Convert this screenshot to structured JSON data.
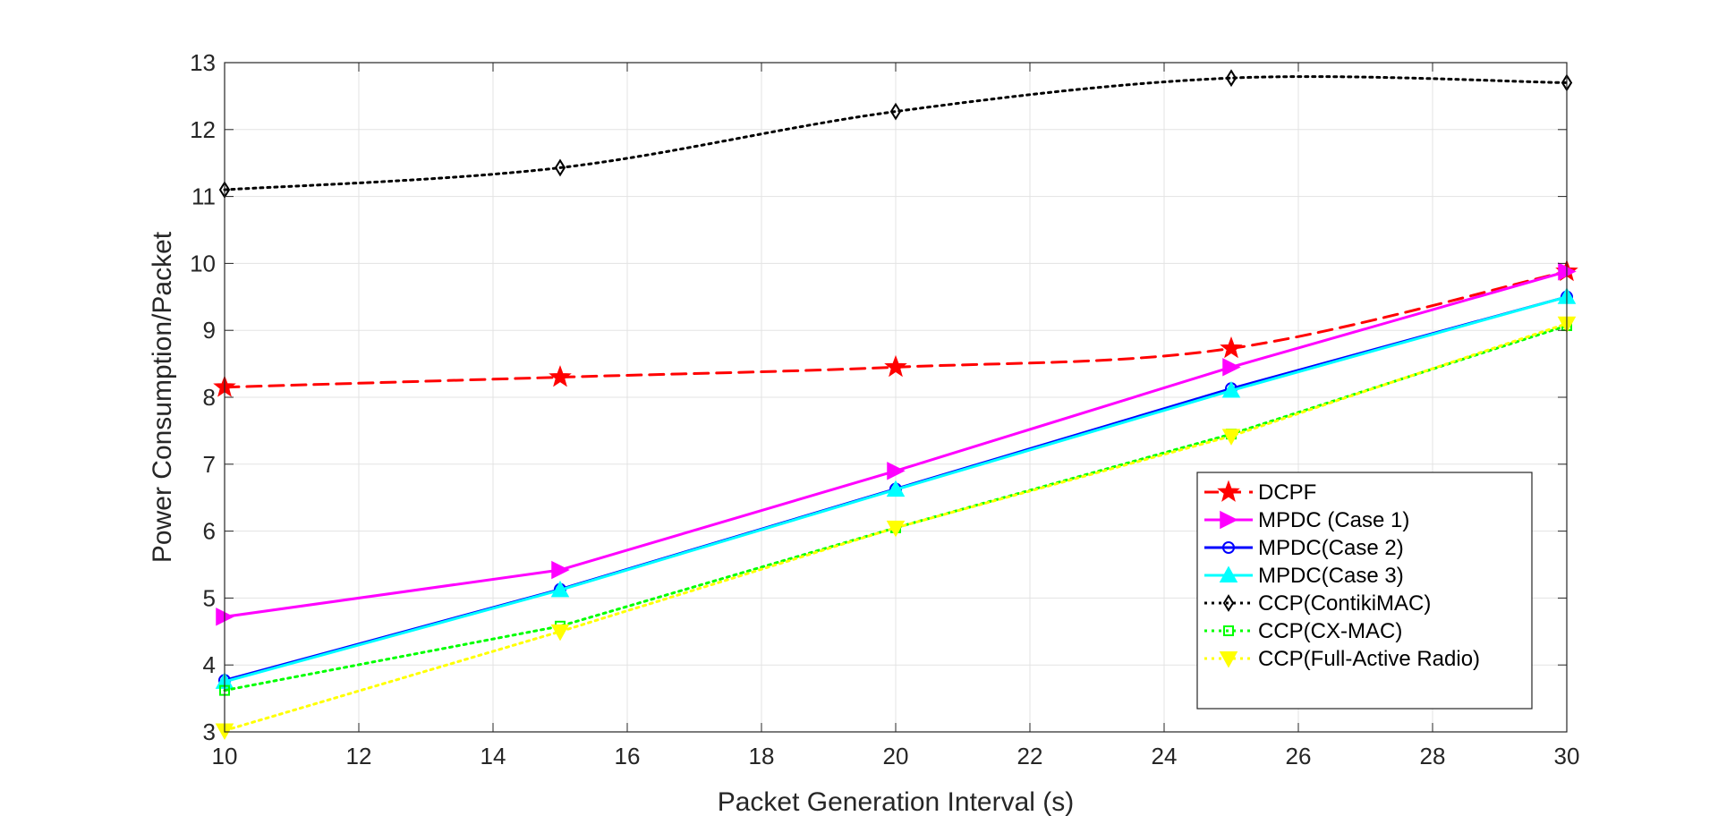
{
  "chart_data": {
    "type": "line",
    "xlabel": "Packet Generation Interval (s)",
    "ylabel": "Power Consumption/Packet",
    "xlim": [
      10,
      30
    ],
    "ylim": [
      3,
      13
    ],
    "xticks": [
      10,
      12,
      14,
      16,
      18,
      20,
      22,
      24,
      26,
      28,
      30
    ],
    "yticks": [
      3,
      4,
      5,
      6,
      7,
      8,
      9,
      10,
      11,
      12,
      13
    ],
    "grid": true,
    "legend_position": "bottom-right",
    "x": [
      10,
      15,
      20,
      25,
      30
    ],
    "series": [
      {
        "name": "DCPF",
        "values": [
          8.15,
          8.3,
          8.45,
          8.73,
          9.88
        ],
        "color": "#ff0000",
        "dash": "dashed",
        "marker": "star",
        "smooth": true
      },
      {
        "name": "MPDC (Case 1)",
        "values": [
          4.72,
          5.42,
          6.9,
          8.45,
          9.88
        ],
        "color": "#ff00ff",
        "dash": "solid",
        "marker": "triangle-right"
      },
      {
        "name": "MPDC(Case 2)",
        "values": [
          3.77,
          5.13,
          6.63,
          8.13,
          9.5
        ],
        "color": "#0000ff",
        "dash": "solid",
        "marker": "circle"
      },
      {
        "name": "MPDC(Case 3)",
        "values": [
          3.75,
          5.12,
          6.62,
          8.1,
          9.5
        ],
        "color": "#00ffff",
        "dash": "solid",
        "marker": "triangle-up"
      },
      {
        "name": "CCP(ContikiMAC)",
        "values": [
          11.1,
          11.43,
          12.27,
          12.77,
          12.7
        ],
        "color": "#000000",
        "dash": "dotted",
        "marker": "diamond",
        "smooth": true
      },
      {
        "name": "CCP(CX-MAC)",
        "values": [
          3.62,
          4.58,
          6.05,
          7.45,
          9.07
        ],
        "color": "#00ff00",
        "dash": "dotted",
        "marker": "square"
      },
      {
        "name": "CCP(Full-Active Radio)",
        "values": [
          3.02,
          4.5,
          6.05,
          7.42,
          9.1
        ],
        "color": "#ffff00",
        "dash": "dotted",
        "marker": "triangle-down"
      }
    ]
  }
}
